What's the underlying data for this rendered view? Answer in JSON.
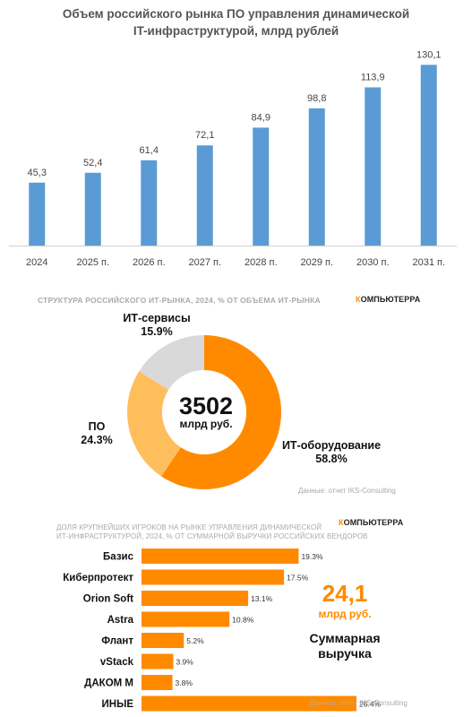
{
  "bar_chart": {
    "title_line1": "Объем российского рынка ПО управления динамической",
    "title_line2": "IT-инфраструктурой, млрд рублей"
  },
  "structure": {
    "heading": "СТРУКТУРА РОССИЙСКОГО ИТ-РЫНКА, 2024, % ОТ ОБЪЕМА ИТ-РЫНКА",
    "logo_k": "К",
    "logo_rest": "ОМПЬЮТЕРРА",
    "center_value": "3502",
    "center_unit": "млрд руб.",
    "label_services": "ИТ-сервисы",
    "value_services": "15.9%",
    "label_po": "ПО",
    "value_po": "24.3%",
    "label_hw": "ИТ-оборудование",
    "value_hw": "58.8%",
    "source": "Данные: отчет IKS-Consulting",
    "colors": {
      "hw": "#ff8a00",
      "po": "#ffbe5c",
      "services": "#d9d9d9"
    }
  },
  "vendors": {
    "heading_line1": "ДОЛЯ КРУПНЕЙШИХ ИГРОКОВ НА РЫНКЕ УПРАВЛЕНИЯ ДИНАМИЧЕСКОЙ",
    "heading_line2": "ИТ-ИНФРАСТРУКТУРОЙ, 2024, % ОТ СУММАРНОЙ ВЫРУЧКИ РОССИЙСКИХ ВЕНДОРОВ",
    "logo_k": "К",
    "logo_rest": "ОМПЬЮТЕРРА",
    "total_value": "24,1",
    "total_unit": "млрд руб.",
    "total_label_line1": "Суммарная",
    "total_label_line2": "выручка",
    "source": "Данные: отчет IKS-Consulting"
  },
  "chart_data": [
    {
      "type": "bar",
      "title": "Объем российского рынка ПО управления динамической IT-инфраструктурой, млрд рублей",
      "categories": [
        "2024",
        "2025 п.",
        "2026 п.",
        "2027 п.",
        "2028 п.",
        "2029 п.",
        "2030 п.",
        "2031 п."
      ],
      "values": [
        45.3,
        52.4,
        61.4,
        72.1,
        84.9,
        98.8,
        113.9,
        130.1
      ],
      "value_labels": [
        "45,3",
        "52,4",
        "61,4",
        "72,1",
        "84,9",
        "98,8",
        "113,9",
        "130,1"
      ],
      "ylim": [
        0,
        140
      ],
      "color": "#5b9bd5",
      "grid": false
    },
    {
      "type": "pie",
      "title": "СТРУКТУРА РОССИЙСКОГО ИТ-РЫНКА, 2024, % ОТ ОБЪЕМА ИТ-РЫНКА",
      "labels": [
        "ИТ-оборудование",
        "ПО",
        "ИТ-сервисы"
      ],
      "values": [
        58.8,
        24.3,
        15.9
      ],
      "colors": [
        "#ff8a00",
        "#ffbe5c",
        "#d9d9d9"
      ]
    },
    {
      "type": "bar",
      "orientation": "horizontal",
      "title": "ДОЛЯ КРУПНЕЙШИХ ИГРОКОВ НА РЫНКЕ УПРАВЛЕНИЯ ДИНАМИЧЕСКОЙ ИТ-ИНФРАСТРУКТУРОЙ, 2024, % ОТ СУММАРНОЙ ВЫРУЧКИ РОССИЙСКИХ ВЕНДОРОВ",
      "categories": [
        "Базис",
        "Киберпротект",
        "Orion Soft",
        "Astra",
        "Флант",
        "vStack",
        "ДАКОМ М",
        "ИНЫЕ"
      ],
      "values": [
        19.3,
        17.5,
        13.1,
        10.8,
        5.2,
        3.9,
        3.8,
        26.4
      ],
      "value_labels": [
        "19.3%",
        "17.5%",
        "13.1%",
        "10.8%",
        "5.2%",
        "3.9%",
        "3.8%",
        "26.4%"
      ],
      "color": "#ff8a00"
    }
  ]
}
